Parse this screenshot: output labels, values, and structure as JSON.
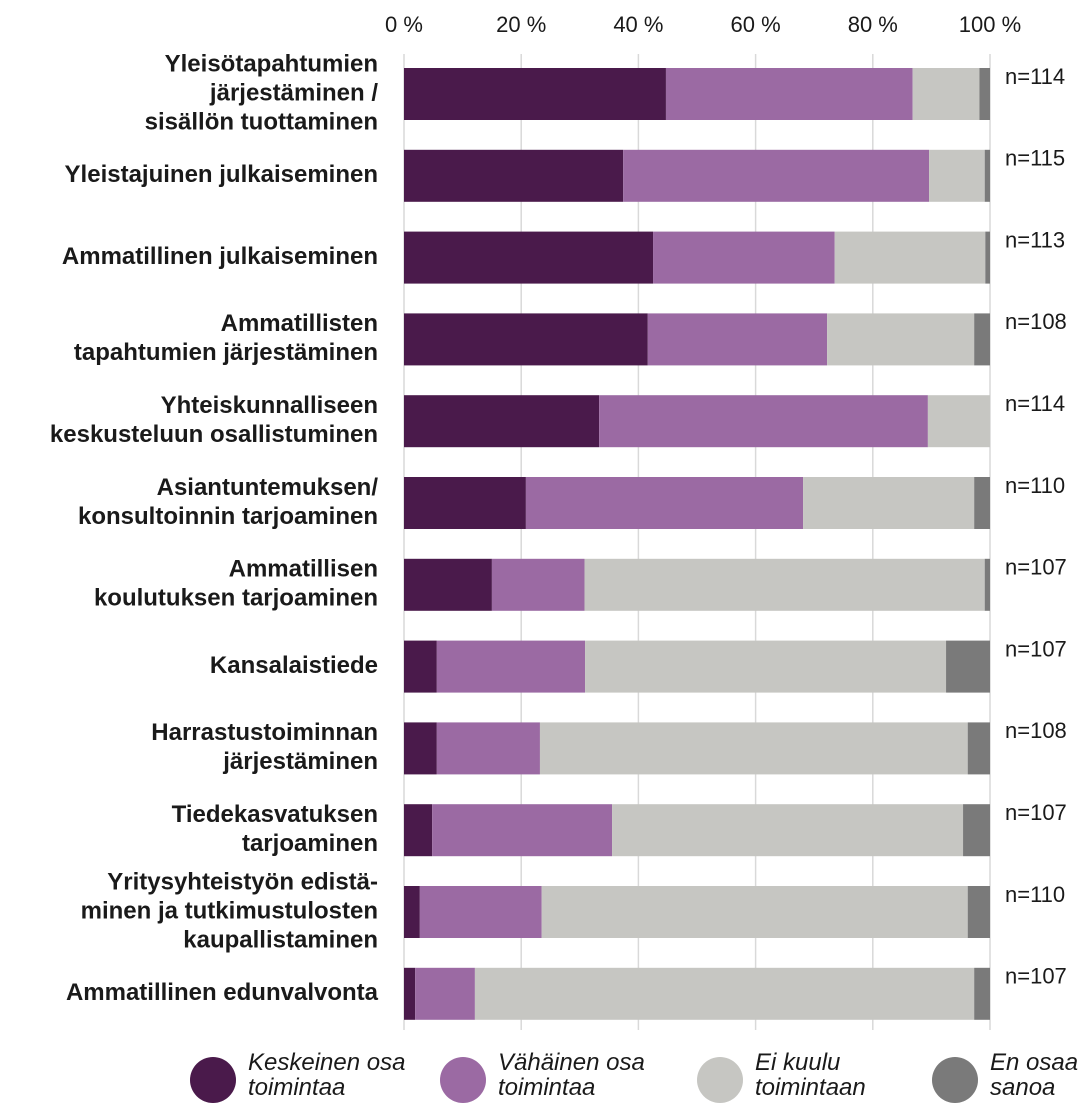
{
  "chart_data": {
    "type": "stacked_bar_horizontal",
    "categories": [
      [
        "Yleisötapahtumien",
        "järjestäminen /",
        "sisällön tuottaminen"
      ],
      [
        "Yleistajuinen julkaiseminen"
      ],
      [
        "Ammatillinen julkaiseminen"
      ],
      [
        "Ammatillisten",
        "tapahtumien järjestäminen"
      ],
      [
        "Yhteiskunnalliseen",
        "keskusteluun osallistuminen"
      ],
      [
        "Asiantuntemuksen/",
        "konsultoinnin tarjoaminen"
      ],
      [
        "Ammatillisen",
        "koulutuksen tarjoaminen"
      ],
      [
        "Kansalaistiede"
      ],
      [
        "Harrastustoiminnan",
        "järjestäminen"
      ],
      [
        "Tiedekasvatuksen",
        "tarjoaminen"
      ],
      [
        "Yritysyhteistyön edistä-",
        "minen ja tutkimustulosten",
        "kaupallistaminen"
      ],
      [
        "Ammatillinen edunvalvonta"
      ]
    ],
    "series": [
      {
        "name": "Keskeinen osa toimintaa",
        "color": "#4a1a4b",
        "values": [
          44.7,
          37.4,
          42.5,
          41.6,
          33.3,
          20.8,
          15.0,
          5.6,
          5.6,
          4.8,
          2.7,
          1.9
        ]
      },
      {
        "name": "Vähäinen osa toimintaa",
        "color": "#9b6aa3",
        "values": [
          42.1,
          52.2,
          31.0,
          30.6,
          56.1,
          47.3,
          15.8,
          25.3,
          17.6,
          30.7,
          20.8,
          10.2
        ]
      },
      {
        "name": "Ei kuulu toimintaan",
        "color": "#c6c6c2",
        "values": [
          11.4,
          9.5,
          25.7,
          25.1,
          10.6,
          29.2,
          68.3,
          61.6,
          73.0,
          59.9,
          72.7,
          85.2
        ]
      },
      {
        "name": "En osaa sanoa",
        "color": "#7a7a7a",
        "values": [
          1.8,
          0.9,
          0.8,
          2.7,
          0,
          2.7,
          0.9,
          7.5,
          3.8,
          4.6,
          3.8,
          2.7
        ]
      }
    ],
    "n_labels": [
      "n=114",
      "n=115",
      "n=113",
      "n=108",
      "n=114",
      "n=110",
      "n=107",
      "n=107",
      "n=108",
      "n=107",
      "n=110",
      "n=107"
    ],
    "xlim": [
      0,
      100
    ],
    "xticks": [
      {
        "value": 0,
        "label": "0 %"
      },
      {
        "value": 20,
        "label": "20 %"
      },
      {
        "value": 40,
        "label": "40 %"
      },
      {
        "value": 60,
        "label": "60 %"
      },
      {
        "value": 80,
        "label": "80 %"
      },
      {
        "value": 100,
        "label": "100 %"
      }
    ],
    "grid": true,
    "legend": "bottom"
  }
}
